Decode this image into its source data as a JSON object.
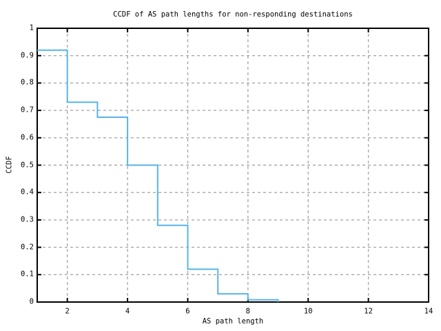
{
  "chart_data": {
    "type": "line",
    "style": "step-post",
    "title": "CCDF of AS path lengths for non-responding destinations",
    "xlabel": "AS path length",
    "ylabel": "CCDF",
    "xlim": [
      1,
      14
    ],
    "ylim": [
      0,
      1
    ],
    "xticks": [
      2,
      4,
      6,
      8,
      10,
      12,
      14
    ],
    "xtick_labels": [
      "2",
      "4",
      "6",
      "8",
      "10",
      "12",
      "14"
    ],
    "yticks": [
      0,
      0.1,
      0.2,
      0.3,
      0.4,
      0.5,
      0.6,
      0.7,
      0.8,
      0.9,
      1
    ],
    "ytick_labels": [
      "0",
      "0.1",
      "0.2",
      "0.3",
      "0.4",
      "0.5",
      "0.6",
      "0.7",
      "0.8",
      "0.9",
      "1"
    ],
    "grid": true,
    "legend": "none",
    "series": [
      {
        "name": "CCDF of AS path lengths",
        "points": [
          [
            1,
            0.92
          ],
          [
            2,
            0.73
          ],
          [
            3,
            0.675
          ],
          [
            4,
            0.5
          ],
          [
            5,
            0.28
          ],
          [
            6,
            0.12
          ],
          [
            7,
            0.03
          ],
          [
            8,
            0.008
          ],
          [
            9,
            0
          ]
        ]
      }
    ]
  },
  "colors": {
    "line": "#56b4e9",
    "grid": "#a8a8a8",
    "axis": "#000000",
    "background": "#ffffff",
    "text": "#000000"
  }
}
